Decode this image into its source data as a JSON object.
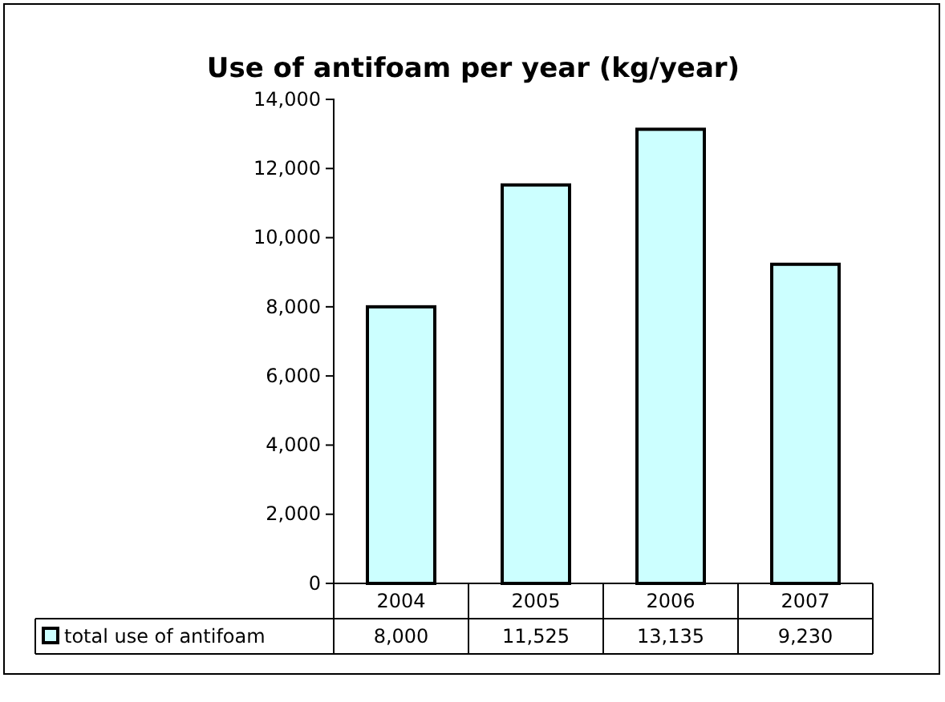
{
  "chart_data": {
    "type": "bar",
    "title": "Use of antifoam per year (kg/year)",
    "categories": [
      "2004",
      "2005",
      "2006",
      "2007"
    ],
    "series": [
      {
        "name": "total use of antifoam",
        "color": "#ccffff",
        "values": [
          8000,
          11525,
          13135,
          9230
        ],
        "value_labels": [
          "8,000",
          "11,525",
          "13,135",
          "9,230"
        ]
      }
    ],
    "ylim": [
      0,
      14000
    ],
    "yticks": [
      0,
      {
        "value": 2000,
        "label": "2,000"
      },
      {
        "value": 4000,
        "label": "4,000"
      },
      {
        "value": 6000,
        "label": "6,000"
      },
      {
        "value": 8000,
        "label": "8,000"
      },
      {
        "value": 10000,
        "label": "10,000"
      },
      {
        "value": 12000,
        "label": "12,000"
      },
      {
        "value": 14000,
        "label": "14,000"
      }
    ],
    "grid": false,
    "legend": "bottom left"
  }
}
